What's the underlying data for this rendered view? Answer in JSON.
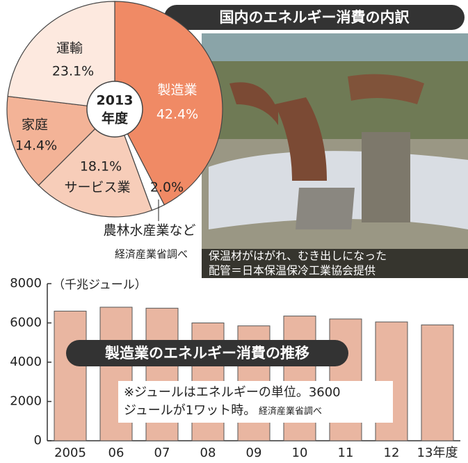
{
  "chart_data": [
    {
      "type": "pie",
      "title": "国内のエネルギー消費の内訳",
      "center_label": [
        "2013",
        "年度"
      ],
      "categories": [
        "製造業",
        "農林水産業など",
        "サービス業",
        "家庭",
        "運輸"
      ],
      "values": [
        42.4,
        2.0,
        18.1,
        14.4,
        23.1
      ],
      "value_labels": [
        "42.4%",
        "2.0%",
        "18.1%",
        "14.4%",
        "23.1%"
      ],
      "colors": [
        "#f08a65",
        "#ffffff",
        "#f7cdb9",
        "#f3b397",
        "#fde9df"
      ],
      "source": "経済産業省調べ"
    },
    {
      "type": "bar",
      "title": "製造業のエネルギー消費の推移",
      "y_label": "（千兆ジュール）",
      "categories": [
        "2005",
        "06",
        "07",
        "08",
        "09",
        "10",
        "11",
        "12",
        "13年度"
      ],
      "values": [
        6600,
        6800,
        6750,
        6000,
        5850,
        6350,
        6200,
        6050,
        5900
      ],
      "color": "#e9b6a1",
      "ylim": [
        0,
        8000
      ],
      "yticks": [
        0,
        2000,
        4000,
        6000,
        8000
      ],
      "note": [
        "※ジュールはエネルギーの単位。3600",
        "ジュールが1ワット時。"
      ],
      "source": "経済産業省調べ"
    }
  ],
  "photo": {
    "caption": [
      "保温材がはがれ、むき出しになった",
      "配管＝日本保温保冷工業協会提供"
    ]
  }
}
